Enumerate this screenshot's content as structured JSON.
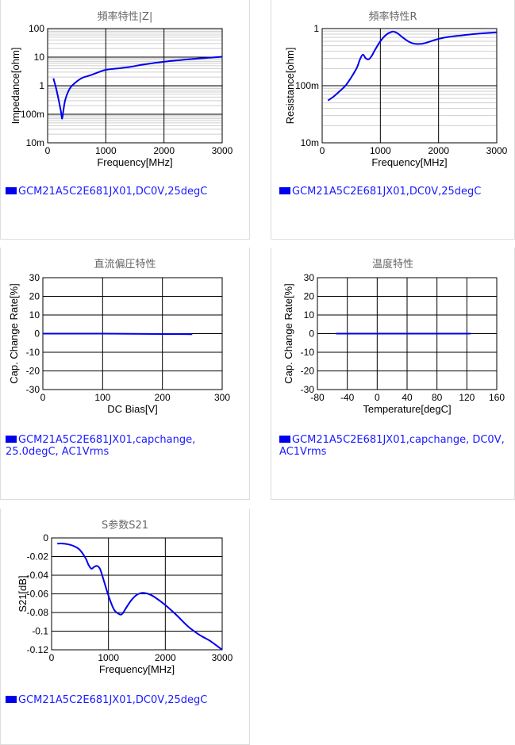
{
  "panels": [
    {
      "title": "頻率特性|Z|",
      "legend": "GCM21A5C2E681JX01,DC0V,25degC",
      "chart_data": {
        "type": "line",
        "xlabel": "Frequency[MHz]",
        "ylabel": "Impedance[ohm]",
        "xlim": [
          0,
          3000
        ],
        "ylim": [
          0.01,
          100
        ],
        "yscale": "log",
        "xticks": [
          "0",
          "1000",
          "2000",
          "3000"
        ],
        "yticks": [
          "10m",
          "100m",
          "1",
          "10",
          "100"
        ],
        "grid": true,
        "series": [
          {
            "x": [
              100,
              150,
              200,
              230,
              250,
              270,
              300,
              350,
              400,
              500,
              600,
              700,
              800,
              900,
              1000,
              1200,
              1400,
              1600,
              1800,
              2000,
              2200,
              2400,
              2600,
              2800,
              3000
            ],
            "y": [
              1.8,
              0.75,
              0.25,
              0.12,
              0.07,
              0.13,
              0.3,
              0.6,
              0.9,
              1.4,
              1.9,
              2.2,
              2.6,
              3.1,
              3.6,
              4.0,
              4.5,
              5.3,
              6.1,
              6.9,
              7.6,
              8.3,
              9.0,
              9.6,
              10.3
            ]
          }
        ]
      }
    },
    {
      "title": "頻率特性R",
      "legend": "GCM21A5C2E681JX01,DC0V,25degC",
      "chart_data": {
        "type": "line",
        "xlabel": "Frequency[MHz]",
        "ylabel": "Resistance[ohm]",
        "xlim": [
          0,
          3000
        ],
        "ylim": [
          0.01,
          1
        ],
        "yscale": "log",
        "xticks": [
          "0",
          "1000",
          "2000",
          "3000"
        ],
        "yticks": [
          "10m",
          "100m",
          "1"
        ],
        "grid": true,
        "series": [
          {
            "x": [
              100,
              200,
              300,
              400,
              500,
              600,
              650,
              700,
              750,
              800,
              850,
              900,
              1000,
              1100,
              1200,
              1250,
              1300,
              1400,
              1500,
              1600,
              1700,
              1800,
              2000,
              2200,
              2400,
              2600,
              2800,
              3000
            ],
            "y": [
              0.055,
              0.065,
              0.08,
              0.1,
              0.14,
              0.21,
              0.29,
              0.35,
              0.3,
              0.29,
              0.33,
              0.41,
              0.6,
              0.78,
              0.88,
              0.87,
              0.82,
              0.68,
              0.58,
              0.54,
              0.54,
              0.57,
              0.66,
              0.72,
              0.76,
              0.8,
              0.83,
              0.86
            ]
          }
        ]
      }
    },
    {
      "title": "直流偏圧特性",
      "legend": "GCM21A5C2E681JX01,capchange, 25.0degC, AC1Vrms",
      "chart_data": {
        "type": "line",
        "xlabel": "DC Bias[V]",
        "ylabel": "Cap. Change Rate[%]",
        "xlim": [
          0,
          300
        ],
        "ylim": [
          -30,
          30
        ],
        "xticks": [
          "0",
          "100",
          "200",
          "300"
        ],
        "yticks": [
          "-30",
          "-20",
          "-10",
          "0",
          "10",
          "20",
          "30"
        ],
        "grid": true,
        "series": [
          {
            "x": [
              0,
              50,
              100,
              150,
              200,
              250
            ],
            "y": [
              0,
              0,
              0,
              -0.1,
              -0.2,
              -0.3
            ]
          }
        ]
      }
    },
    {
      "title": "温度特性",
      "legend": "GCM21A5C2E681JX01,capchange, DC0V, AC1Vrms",
      "chart_data": {
        "type": "line",
        "xlabel": "Temperature[degC]",
        "ylabel": "Cap. Change Rate[%]",
        "xlim": [
          -80,
          160
        ],
        "ylim": [
          -30,
          30
        ],
        "xticks": [
          "-80",
          "-40",
          "0",
          "40",
          "80",
          "120",
          "160"
        ],
        "yticks": [
          "-30",
          "-20",
          "-10",
          "0",
          "10",
          "20",
          "30"
        ],
        "grid": true,
        "series": [
          {
            "x": [
              -55,
              -25,
              0,
              25,
              50,
              85,
              125
            ],
            "y": [
              0,
              0,
              0,
              0,
              0,
              0,
              0
            ]
          }
        ]
      }
    },
    {
      "title": "S参数S21",
      "legend": "GCM21A5C2E681JX01,DC0V,25degC",
      "chart_data": {
        "type": "line",
        "xlabel": "Frequency[MHz]",
        "ylabel": "S21[dB]",
        "xlim": [
          0,
          3000
        ],
        "ylim": [
          -0.12,
          0
        ],
        "xticks": [
          "0",
          "1000",
          "2000",
          "3000"
        ],
        "yticks": [
          "-0.12",
          "-0.1",
          "-0.08",
          "-0.06",
          "-0.04",
          "-0.02",
          "0"
        ],
        "grid": true,
        "series": [
          {
            "x": [
              100,
              200,
              300,
              400,
              500,
              600,
              650,
              700,
              750,
              800,
              850,
              900,
              1000,
              1100,
              1200,
              1250,
              1300,
              1400,
              1500,
              1600,
              1700,
              1800,
              2000,
              2200,
              2400,
              2600,
              2800,
              3000
            ],
            "y": [
              -0.006,
              -0.006,
              -0.007,
              -0.009,
              -0.013,
              -0.022,
              -0.029,
              -0.033,
              -0.031,
              -0.03,
              -0.033,
              -0.042,
              -0.062,
              -0.077,
              -0.082,
              -0.081,
              -0.076,
              -0.067,
              -0.061,
              -0.059,
              -0.06,
              -0.063,
              -0.072,
              -0.083,
              -0.095,
              -0.104,
              -0.111,
              -0.12
            ]
          }
        ]
      }
    }
  ]
}
